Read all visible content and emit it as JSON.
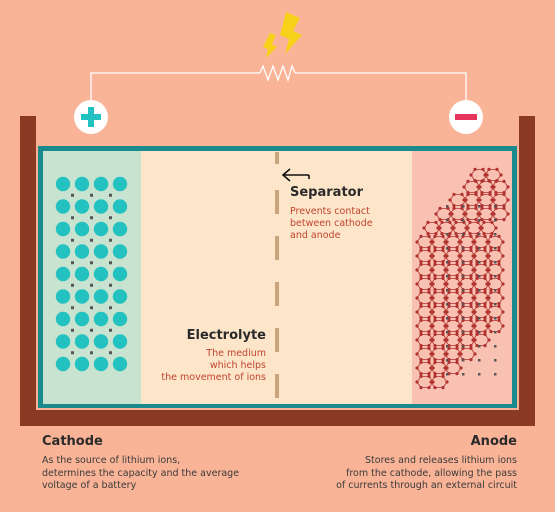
{
  "separator": {
    "title": "Separator",
    "desc": [
      "Prevents contact",
      "between cathode",
      "and anode"
    ]
  },
  "electrolyte": {
    "title": "Electrolyte",
    "desc": [
      "The medium",
      "which helps",
      "the movement of ions"
    ]
  },
  "cathode": {
    "title": "Cathode",
    "desc": [
      "As the source of lithium ions,",
      "determines the capacity and the average",
      "voltage of a battery"
    ]
  },
  "anode": {
    "title": "Anode",
    "desc": [
      "Stores and releases lithium ions",
      "from the cathode, allowing the pass",
      "of currents through an external circuit"
    ]
  },
  "colors": {
    "background": "#f9b497",
    "container": "#8b3b24",
    "teal": "#1a8a8c",
    "cathode_region": "#c8e3cf",
    "electrolyte_region": "#fde5c9",
    "anode_region": "#f9c1b2",
    "ion": "#23c2c1",
    "anode_mesh": "#b1332f",
    "separator": "#c9a57d",
    "red_text": "#c1442e",
    "bolt": "#f7d11a"
  },
  "icons": [
    "lightning-bolt-icon",
    "resistor-icon",
    "plus-icon",
    "minus-icon",
    "arrow-left-icon"
  ]
}
